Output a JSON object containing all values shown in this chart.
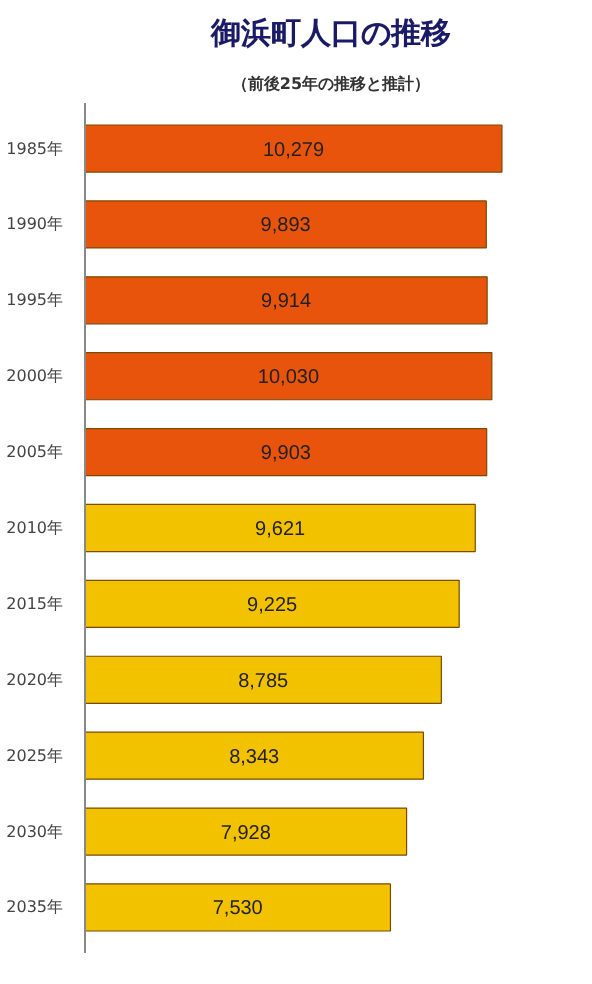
{
  "chart_data": {
    "type": "bar",
    "orientation": "horizontal",
    "title": "御浜町人口の推移",
    "subtitle": "（前後25年の推移と推計）",
    "categories": [
      "1985年",
      "1990年",
      "1995年",
      "2000年",
      "2005年",
      "2010年",
      "2015年",
      "2020年",
      "2025年",
      "2030年",
      "2035年"
    ],
    "values": [
      10279,
      9893,
      9914,
      10030,
      9903,
      9621,
      9225,
      8785,
      8343,
      7928,
      7530
    ],
    "colors": [
      "#e8540c",
      "#e8540c",
      "#e8540c",
      "#e8540c",
      "#e8540c",
      "#f2c200",
      "#f2c200",
      "#f2c200",
      "#f2c200",
      "#f2c200",
      "#f2c200"
    ],
    "value_labels": [
      "10,279",
      "9,893",
      "9,914",
      "10,030",
      "9,903",
      "9,621",
      "9,225",
      "8,785",
      "8,343",
      "7,928",
      "7,530"
    ],
    "grid": false
  }
}
